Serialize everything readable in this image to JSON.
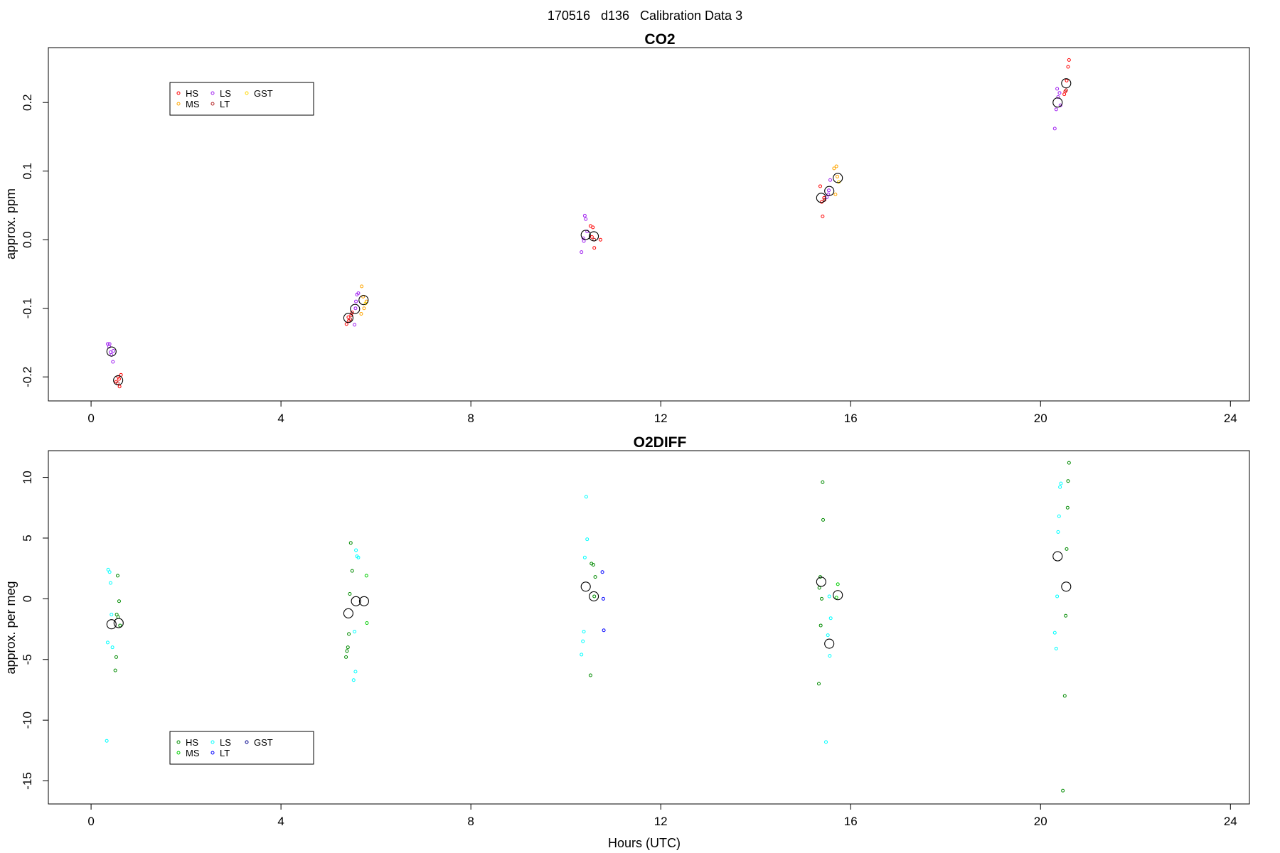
{
  "figure": {
    "title": "170516   d136   Calibration Data 3",
    "xlabel": "Hours (UTC)"
  },
  "chart_data": [
    {
      "type": "scatter",
      "title": "CO2",
      "xlabel": "",
      "ylabel": "approx. ppm",
      "xlim": [
        -0.9,
        24.4
      ],
      "ylim": [
        -0.235,
        0.28
      ],
      "x_ticks": [
        0,
        4,
        8,
        12,
        16,
        20,
        24
      ],
      "y_ticks": [
        -0.2,
        -0.1,
        0.0,
        0.1,
        0.2
      ],
      "y_tick_labels": [
        "-0.2",
        "-0.1",
        "0.0",
        "0.1",
        "0.2"
      ],
      "legend": {
        "position": "top-left",
        "entries": [
          {
            "name": "HS",
            "color": "#ff0000"
          },
          {
            "name": "MS",
            "color": "#ffa500"
          },
          {
            "name": "LS",
            "color": "#a020f0"
          },
          {
            "name": "LT",
            "color": "#b22222"
          },
          {
            "name": "GST",
            "color": "#ffd700"
          }
        ]
      },
      "series": [
        {
          "name": "HS",
          "color": "#ff0000",
          "points": [
            [
              0.53,
              -0.207
            ],
            [
              0.6,
              -0.214
            ],
            [
              0.63,
              -0.197
            ],
            [
              0.57,
              -0.2
            ],
            [
              0.59,
              -0.203
            ],
            [
              5.38,
              -0.123
            ],
            [
              5.43,
              -0.118
            ],
            [
              5.48,
              -0.11
            ],
            [
              5.5,
              -0.106
            ],
            [
              5.42,
              -0.113
            ],
            [
              10.52,
              0.02
            ],
            [
              10.57,
              0.018
            ],
            [
              10.6,
              -0.012
            ],
            [
              10.55,
              0.004
            ],
            [
              10.73,
              0.0
            ],
            [
              15.36,
              0.078
            ],
            [
              15.41,
              0.034
            ],
            [
              15.44,
              0.061
            ],
            [
              15.39,
              0.055
            ],
            [
              20.52,
              0.216
            ],
            [
              20.58,
              0.252
            ],
            [
              20.6,
              0.262
            ],
            [
              20.5,
              0.212
            ],
            [
              20.55,
              0.232
            ]
          ]
        },
        {
          "name": "MS",
          "color": "#ffa500",
          "points": [
            [
              5.7,
              -0.068
            ],
            [
              5.75,
              -0.1
            ],
            [
              5.69,
              -0.108
            ],
            [
              5.8,
              -0.09
            ],
            [
              5.73,
              -0.083
            ],
            [
              15.65,
              0.104
            ],
            [
              15.7,
              0.107
            ],
            [
              15.72,
              0.092
            ],
            [
              15.68,
              0.066
            ]
          ]
        },
        {
          "name": "LS",
          "color": "#a020f0",
          "points": [
            [
              0.35,
              -0.152
            ],
            [
              0.38,
              -0.156
            ],
            [
              0.43,
              -0.168
            ],
            [
              0.46,
              -0.178
            ],
            [
              0.41,
              -0.164
            ],
            [
              0.47,
              -0.162
            ],
            [
              0.39,
              -0.152
            ],
            [
              5.55,
              -0.124
            ],
            [
              5.58,
              -0.09
            ],
            [
              5.6,
              -0.08
            ],
            [
              5.63,
              -0.078
            ],
            [
              5.57,
              -0.1
            ],
            [
              10.33,
              -0.018
            ],
            [
              10.4,
              0.035
            ],
            [
              10.42,
              0.03
            ],
            [
              10.37,
              0.002
            ],
            [
              10.45,
              0.012
            ],
            [
              10.38,
              -0.002
            ],
            [
              15.5,
              0.062
            ],
            [
              15.54,
              0.072
            ],
            [
              15.57,
              0.087
            ],
            [
              15.53,
              0.066
            ],
            [
              20.3,
              0.162
            ],
            [
              20.33,
              0.19
            ],
            [
              20.37,
              0.208
            ],
            [
              20.4,
              0.214
            ],
            [
              20.42,
              0.196
            ],
            [
              20.35,
              0.22
            ]
          ]
        },
        {
          "name": "LT",
          "color": "#b22222",
          "points": [
            [
              0.56,
              -0.209
            ],
            [
              5.46,
              -0.116
            ],
            [
              10.6,
              0.0
            ],
            [
              15.45,
              0.058
            ],
            [
              20.54,
              0.218
            ]
          ]
        },
        {
          "name": "GST",
          "color": "#ffd700",
          "points": [
            [
              5.78,
              -0.093
            ],
            [
              15.75,
              0.084
            ]
          ]
        }
      ],
      "means": [
        [
          0.43,
          -0.163
        ],
        [
          0.57,
          -0.205
        ],
        [
          5.42,
          -0.114
        ],
        [
          5.56,
          -0.101
        ],
        [
          5.74,
          -0.088
        ],
        [
          10.42,
          0.007
        ],
        [
          10.59,
          0.005
        ],
        [
          15.38,
          0.061
        ],
        [
          15.55,
          0.071
        ],
        [
          15.73,
          0.09
        ],
        [
          20.36,
          0.2
        ],
        [
          20.54,
          0.228
        ]
      ]
    },
    {
      "type": "scatter",
      "title": "O2DIFF",
      "xlabel": "Hours (UTC)",
      "ylabel": "approx. per meg",
      "xlim": [
        -0.9,
        24.4
      ],
      "ylim": [
        -16.9,
        12.2
      ],
      "x_ticks": [
        0,
        4,
        8,
        12,
        16,
        20,
        24
      ],
      "y_ticks": [
        -15,
        -10,
        -5,
        0,
        5,
        10
      ],
      "y_tick_labels": [
        "-15",
        "-10",
        "-5",
        "0",
        "5",
        "10"
      ],
      "legend": {
        "position": "bottom-left",
        "entries": [
          {
            "name": "HS",
            "color": "#008b00"
          },
          {
            "name": "MS",
            "color": "#00cd00"
          },
          {
            "name": "LS",
            "color": "#00ffff"
          },
          {
            "name": "LT",
            "color": "#0000ff"
          },
          {
            "name": "GST",
            "color": "#00008b"
          }
        ]
      },
      "series": [
        {
          "name": "HS",
          "color": "#008b00",
          "points": [
            [
              0.56,
              1.9
            ],
            [
              0.59,
              -0.2
            ],
            [
              0.54,
              -1.3
            ],
            [
              0.57,
              -1.5
            ],
            [
              0.53,
              -4.8
            ],
            [
              0.51,
              -5.9
            ],
            [
              0.61,
              -2.2
            ],
            [
              5.47,
              4.6
            ],
            [
              5.5,
              2.3
            ],
            [
              5.45,
              0.4
            ],
            [
              5.43,
              -2.9
            ],
            [
              5.41,
              -4.0
            ],
            [
              5.39,
              -4.3
            ],
            [
              5.37,
              -4.8
            ],
            [
              10.54,
              2.9
            ],
            [
              10.58,
              2.8
            ],
            [
              10.62,
              1.8
            ],
            [
              10.6,
              0.2
            ],
            [
              10.52,
              -6.3
            ],
            [
              15.41,
              9.6
            ],
            [
              15.42,
              6.5
            ],
            [
              15.36,
              1.8
            ],
            [
              15.39,
              0.0
            ],
            [
              15.34,
              0.9
            ],
            [
              15.37,
              -2.2
            ],
            [
              15.33,
              -7.0
            ],
            [
              20.6,
              11.2
            ],
            [
              20.58,
              9.7
            ],
            [
              20.57,
              7.5
            ],
            [
              20.55,
              4.1
            ],
            [
              20.53,
              -1.4
            ],
            [
              20.51,
              -8.0
            ],
            [
              20.47,
              -15.8
            ]
          ]
        },
        {
          "name": "MS",
          "color": "#00cd00",
          "points": [
            [
              5.8,
              1.9
            ],
            [
              5.81,
              -2.0
            ],
            [
              15.73,
              1.2
            ],
            [
              15.7,
              0.1
            ]
          ]
        },
        {
          "name": "LS",
          "color": "#00ffff",
          "points": [
            [
              0.36,
              2.4
            ],
            [
              0.39,
              2.2
            ],
            [
              0.41,
              1.3
            ],
            [
              0.43,
              -1.3
            ],
            [
              0.35,
              -3.6
            ],
            [
              0.45,
              -4.0
            ],
            [
              0.33,
              -11.7
            ],
            [
              5.58,
              4.0
            ],
            [
              5.6,
              3.5
            ],
            [
              5.63,
              3.4
            ],
            [
              5.55,
              -2.7
            ],
            [
              5.57,
              -6.0
            ],
            [
              5.53,
              -6.7
            ],
            [
              10.43,
              8.4
            ],
            [
              10.45,
              4.9
            ],
            [
              10.4,
              3.4
            ],
            [
              10.38,
              -2.7
            ],
            [
              10.36,
              -3.5
            ],
            [
              10.33,
              -4.6
            ],
            [
              15.55,
              0.2
            ],
            [
              15.58,
              -1.6
            ],
            [
              15.52,
              -3.0
            ],
            [
              15.56,
              -4.7
            ],
            [
              15.48,
              -11.8
            ],
            [
              20.3,
              -2.8
            ],
            [
              20.33,
              -4.1
            ],
            [
              20.35,
              0.2
            ],
            [
              20.37,
              5.5
            ],
            [
              20.39,
              6.8
            ],
            [
              20.41,
              9.2
            ],
            [
              20.43,
              9.5
            ]
          ]
        },
        {
          "name": "LT",
          "color": "#0000ff",
          "points": [
            [
              10.77,
              2.2
            ],
            [
              10.79,
              0.0
            ],
            [
              10.8,
              -2.6
            ]
          ]
        },
        {
          "name": "GST",
          "color": "#00008b",
          "points": []
        }
      ],
      "means": [
        [
          0.43,
          -2.1
        ],
        [
          0.58,
          -2.0
        ],
        [
          5.42,
          -1.2
        ],
        [
          5.58,
          -0.2
        ],
        [
          5.75,
          -0.2
        ],
        [
          10.42,
          1.0
        ],
        [
          10.59,
          0.2
        ],
        [
          15.38,
          1.4
        ],
        [
          15.55,
          -3.7
        ],
        [
          15.73,
          0.3
        ],
        [
          20.36,
          3.5
        ],
        [
          20.54,
          1.0
        ]
      ]
    }
  ]
}
